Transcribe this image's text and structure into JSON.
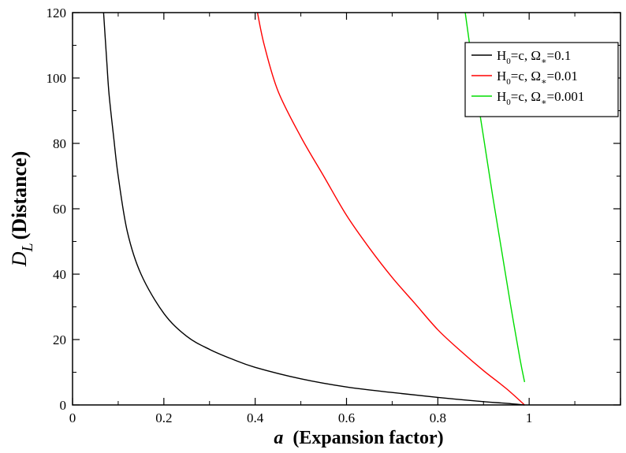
{
  "chart_data": {
    "type": "line",
    "title": "",
    "xlabel": {
      "variable": "a",
      "text": "(Expansion factor)"
    },
    "ylabel": {
      "variable": "D",
      "subscript": "L",
      "text": "(Distance)"
    },
    "xlim": [
      0,
      1.2
    ],
    "ylim": [
      0,
      120
    ],
    "x_ticks": [
      0,
      0.2,
      0.4,
      0.6,
      0.8,
      1
    ],
    "x_tick_labels": [
      "0",
      "0.2",
      "0.4",
      "0.6",
      "0.8",
      "1"
    ],
    "y_ticks": [
      0,
      20,
      40,
      60,
      80,
      100,
      120
    ],
    "y_tick_labels": [
      "0",
      "20",
      "40",
      "60",
      "80",
      "100",
      "120"
    ],
    "grid": false,
    "legend_position": "top-right",
    "series": [
      {
        "name": "H₀=c,  Ωₐ=0.1",
        "legend": {
          "h": "H",
          "sub0": "0",
          "eq": "=c,  Ω",
          "subS": "∗",
          "val": "=0.1"
        },
        "color": "#000000",
        "points": [
          [
            0.068,
            120
          ],
          [
            0.075,
            105
          ],
          [
            0.08,
            95
          ],
          [
            0.09,
            82
          ],
          [
            0.1,
            70
          ],
          [
            0.12,
            53
          ],
          [
            0.15,
            40
          ],
          [
            0.2,
            28
          ],
          [
            0.25,
            21
          ],
          [
            0.3,
            17
          ],
          [
            0.35,
            14
          ],
          [
            0.4,
            11.5
          ],
          [
            0.5,
            8
          ],
          [
            0.6,
            5.5
          ],
          [
            0.7,
            3.8
          ],
          [
            0.8,
            2.3
          ],
          [
            0.9,
            1.0
          ],
          [
            0.95,
            0.5
          ],
          [
            0.99,
            0
          ]
        ]
      },
      {
        "name": "H₀=c,  Ωₐ=0.01",
        "legend": {
          "h": "H",
          "sub0": "0",
          "eq": "=c,  Ω",
          "subS": "∗",
          "val": "=0.01"
        },
        "color": "#ff0000",
        "points": [
          [
            0.405,
            120
          ],
          [
            0.42,
            110
          ],
          [
            0.45,
            96
          ],
          [
            0.5,
            82
          ],
          [
            0.55,
            70
          ],
          [
            0.6,
            58
          ],
          [
            0.65,
            48
          ],
          [
            0.7,
            39
          ],
          [
            0.75,
            31
          ],
          [
            0.8,
            23
          ],
          [
            0.85,
            16.5
          ],
          [
            0.9,
            10.5
          ],
          [
            0.95,
            5
          ],
          [
            0.99,
            0
          ]
        ]
      },
      {
        "name": "H₀=c,  Ωₐ=0.001",
        "legend": {
          "h": "H",
          "sub0": "0",
          "eq": "=c,  Ω",
          "subS": "∗",
          "val": "=0.001"
        },
        "color": "#00dd00",
        "points": [
          [
            0.86,
            120
          ],
          [
            0.88,
            100
          ],
          [
            0.9,
            82
          ],
          [
            0.92,
            64
          ],
          [
            0.94,
            47
          ],
          [
            0.96,
            30
          ],
          [
            0.98,
            14
          ],
          [
            0.99,
            7
          ]
        ]
      }
    ]
  }
}
